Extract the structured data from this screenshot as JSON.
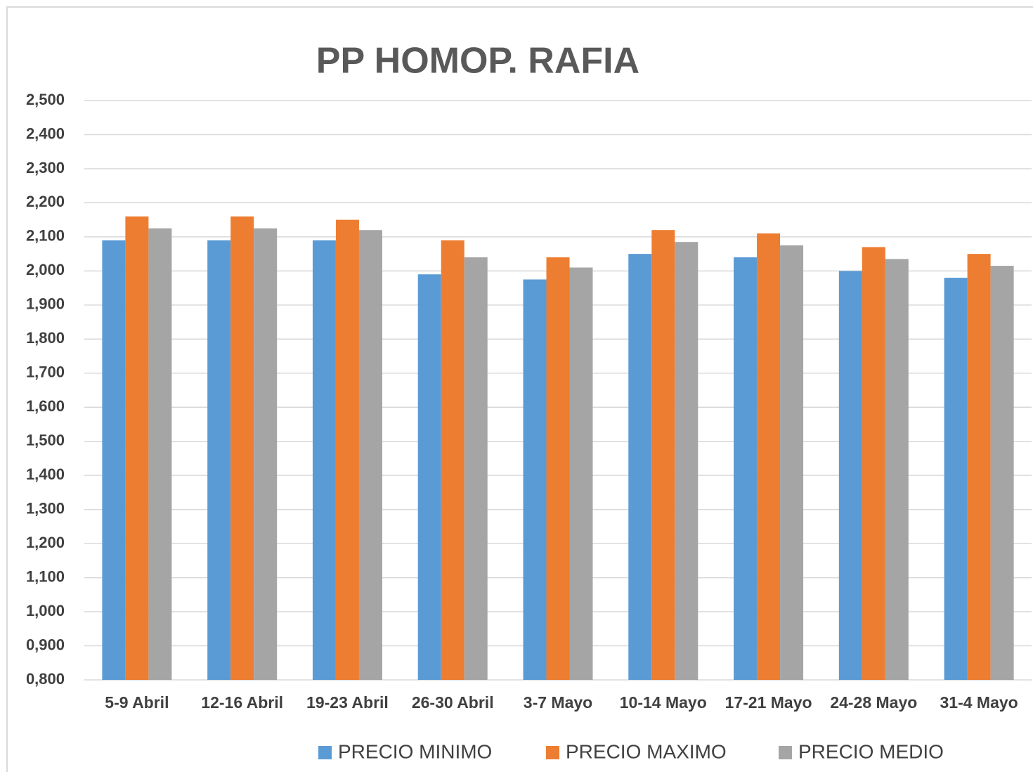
{
  "chart_data": {
    "type": "bar",
    "title": "PP HOMOP. RAFIA",
    "categories": [
      "5-9 Abril",
      "12-16 Abril",
      "19-23 Abril",
      "26-30 Abril",
      "3-7 Mayo",
      "10-14 Mayo",
      "17-21 Mayo",
      "24-28 Mayo",
      "31-4 Mayo"
    ],
    "series": [
      {
        "name": "PRECIO MINIMO",
        "color": "#5b9bd5",
        "values": [
          2.09,
          2.09,
          2.09,
          1.99,
          1.975,
          2.05,
          2.04,
          2.0,
          1.98
        ]
      },
      {
        "name": "PRECIO MAXIMO",
        "color": "#ed7d31",
        "values": [
          2.16,
          2.16,
          2.15,
          2.09,
          2.04,
          2.12,
          2.11,
          2.07,
          2.05
        ]
      },
      {
        "name": "PRECIO MEDIO",
        "color": "#a5a5a5",
        "values": [
          2.125,
          2.125,
          2.12,
          2.04,
          2.01,
          2.085,
          2.075,
          2.035,
          2.015
        ]
      }
    ],
    "ylim": [
      0.8,
      2.5
    ],
    "yticks": [
      {
        "value": 0.8,
        "label": "0,800"
      },
      {
        "value": 0.9,
        "label": "0,900"
      },
      {
        "value": 1.0,
        "label": "1,000"
      },
      {
        "value": 1.1,
        "label": "1,100"
      },
      {
        "value": 1.2,
        "label": "1,200"
      },
      {
        "value": 1.3,
        "label": "1,300"
      },
      {
        "value": 1.4,
        "label": "1,400"
      },
      {
        "value": 1.5,
        "label": "1,500"
      },
      {
        "value": 1.6,
        "label": "1,600"
      },
      {
        "value": 1.7,
        "label": "1,700"
      },
      {
        "value": 1.8,
        "label": "1,800"
      },
      {
        "value": 1.9,
        "label": "1,900"
      },
      {
        "value": 2.0,
        "label": "2,000"
      },
      {
        "value": 2.1,
        "label": "2,100"
      },
      {
        "value": 2.2,
        "label": "2,200"
      },
      {
        "value": 2.3,
        "label": "2,300"
      },
      {
        "value": 2.4,
        "label": "2,400"
      },
      {
        "value": 2.5,
        "label": "2,500"
      }
    ],
    "grid": true,
    "legend": "bottom"
  }
}
